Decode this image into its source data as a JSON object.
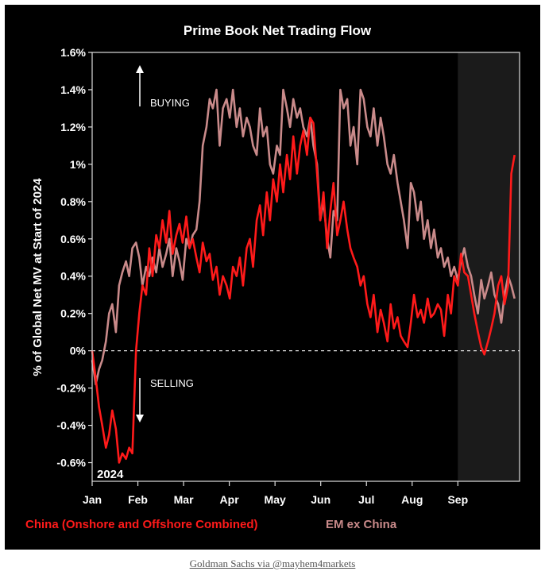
{
  "chart_data": {
    "type": "line",
    "title": "Prime Book Net Trading Flow",
    "ylabel": "% of Global Net MV at Start of 2024",
    "xlabel": "",
    "year_label": "2024",
    "ylim": [
      -0.7,
      1.6
    ],
    "yticks": [
      -0.6,
      -0.4,
      -0.2,
      0,
      0.2,
      0.4,
      0.6,
      0.8,
      1.0,
      1.2,
      1.4,
      1.6
    ],
    "ytick_labels": [
      "-0.6%",
      "-0.4%",
      "-0.2%",
      "0%",
      "0.2%",
      "0.4%",
      "0.6%",
      "0.8%",
      "1%",
      "1.2%",
      "1.4%",
      "1.6%"
    ],
    "x_range_months": [
      0,
      9.35
    ],
    "months": [
      "Jan",
      "Feb",
      "Mar",
      "Apr",
      "May",
      "Jun",
      "Jul",
      "Aug",
      "Sep"
    ],
    "shaded_from_month": 8.0,
    "zero_line": "dashed",
    "annotations": {
      "buying": "BUYING",
      "selling": "SELLING"
    },
    "series": [
      {
        "name": "China (Onshore and Offshore Combined)",
        "color": "#ff1a1a",
        "x": [
          0.0,
          0.08,
          0.15,
          0.22,
          0.3,
          0.37,
          0.44,
          0.52,
          0.59,
          0.66,
          0.74,
          0.81,
          0.88,
          0.96,
          1.03,
          1.1,
          1.18,
          1.25,
          1.32,
          1.4,
          1.47,
          1.54,
          1.62,
          1.69,
          1.76,
          1.84,
          1.91,
          1.98,
          2.06,
          2.13,
          2.2,
          2.28,
          2.35,
          2.42,
          2.5,
          2.57,
          2.64,
          2.72,
          2.79,
          2.86,
          2.94,
          3.01,
          3.08,
          3.16,
          3.23,
          3.3,
          3.38,
          3.45,
          3.52,
          3.6,
          3.67,
          3.74,
          3.82,
          3.89,
          3.96,
          4.04,
          4.11,
          4.18,
          4.26,
          4.33,
          4.4,
          4.48,
          4.55,
          4.62,
          4.7,
          4.77,
          4.84,
          4.92,
          4.99,
          5.06,
          5.14,
          5.21,
          5.28,
          5.36,
          5.43,
          5.5,
          5.58,
          5.65,
          5.72,
          5.8,
          5.87,
          5.94,
          6.02,
          6.09,
          6.16,
          6.24,
          6.31,
          6.38,
          6.46,
          6.53,
          6.6,
          6.68,
          6.75,
          6.82,
          6.9,
          6.97,
          7.04,
          7.12,
          7.19,
          7.26,
          7.34,
          7.41,
          7.48,
          7.56,
          7.63,
          7.7,
          7.78,
          7.85,
          7.92,
          8.0,
          8.07,
          8.14,
          8.22,
          8.29,
          8.36,
          8.44,
          8.51,
          8.58,
          8.66,
          8.73,
          8.8,
          8.88,
          8.95,
          9.02,
          9.1,
          9.17,
          9.24
        ],
        "y": [
          0.0,
          -0.15,
          -0.3,
          -0.4,
          -0.52,
          -0.45,
          -0.32,
          -0.42,
          -0.6,
          -0.55,
          -0.58,
          -0.52,
          -0.55,
          0.0,
          0.2,
          0.35,
          0.3,
          0.55,
          0.4,
          0.62,
          0.55,
          0.7,
          0.58,
          0.75,
          0.52,
          0.62,
          0.68,
          0.58,
          0.72,
          0.55,
          0.6,
          0.5,
          0.42,
          0.58,
          0.48,
          0.52,
          0.38,
          0.45,
          0.3,
          0.4,
          0.35,
          0.28,
          0.45,
          0.4,
          0.5,
          0.35,
          0.55,
          0.6,
          0.45,
          0.7,
          0.78,
          0.62,
          0.85,
          0.7,
          0.92,
          0.8,
          1.0,
          0.85,
          1.05,
          0.92,
          1.15,
          0.95,
          1.1,
          1.18,
          1.05,
          1.25,
          1.22,
          0.95,
          0.7,
          0.85,
          0.55,
          0.75,
          0.9,
          0.62,
          0.7,
          0.8,
          0.65,
          0.55,
          0.5,
          0.45,
          0.35,
          0.4,
          0.25,
          0.18,
          0.3,
          0.1,
          0.22,
          0.15,
          0.05,
          0.25,
          0.12,
          0.18,
          0.08,
          0.05,
          0.02,
          0.15,
          0.3,
          0.18,
          0.22,
          0.15,
          0.28,
          0.18,
          0.2,
          0.25,
          0.22,
          0.08,
          0.3,
          0.2,
          0.4,
          0.35,
          0.52,
          0.42,
          0.4,
          0.3,
          0.2,
          0.1,
          0.02,
          -0.02,
          0.05,
          0.12,
          0.2,
          0.35,
          0.4,
          0.25,
          0.35,
          0.95,
          1.05
        ]
      },
      {
        "name": "EM ex China",
        "color": "#c98a8a",
        "x": [
          0.0,
          0.08,
          0.15,
          0.22,
          0.3,
          0.37,
          0.44,
          0.52,
          0.59,
          0.66,
          0.74,
          0.81,
          0.88,
          0.96,
          1.03,
          1.1,
          1.18,
          1.25,
          1.32,
          1.4,
          1.47,
          1.54,
          1.62,
          1.69,
          1.76,
          1.84,
          1.91,
          1.98,
          2.06,
          2.13,
          2.2,
          2.28,
          2.35,
          2.42,
          2.5,
          2.57,
          2.64,
          2.72,
          2.79,
          2.86,
          2.94,
          3.01,
          3.08,
          3.16,
          3.23,
          3.3,
          3.38,
          3.45,
          3.52,
          3.6,
          3.67,
          3.74,
          3.82,
          3.89,
          3.96,
          4.04,
          4.11,
          4.18,
          4.26,
          4.33,
          4.4,
          4.48,
          4.55,
          4.62,
          4.7,
          4.77,
          4.84,
          4.92,
          4.99,
          5.06,
          5.14,
          5.21,
          5.28,
          5.36,
          5.43,
          5.5,
          5.58,
          5.65,
          5.72,
          5.8,
          5.87,
          5.94,
          6.02,
          6.09,
          6.16,
          6.24,
          6.31,
          6.38,
          6.46,
          6.53,
          6.6,
          6.68,
          6.75,
          6.82,
          6.9,
          6.97,
          7.04,
          7.12,
          7.19,
          7.26,
          7.34,
          7.41,
          7.48,
          7.56,
          7.63,
          7.7,
          7.78,
          7.85,
          7.92,
          8.0,
          8.07,
          8.14,
          8.22,
          8.29,
          8.36,
          8.44,
          8.51,
          8.58,
          8.66,
          8.73,
          8.8,
          8.88,
          8.95,
          9.02,
          9.1,
          9.17,
          9.24
        ],
        "y": [
          -0.05,
          -0.18,
          -0.1,
          -0.05,
          0.05,
          0.2,
          0.25,
          0.1,
          0.35,
          0.42,
          0.48,
          0.4,
          0.55,
          0.58,
          0.5,
          0.35,
          0.45,
          0.4,
          0.5,
          0.42,
          0.55,
          0.45,
          0.52,
          0.6,
          0.4,
          0.55,
          0.48,
          0.38,
          0.6,
          0.55,
          0.62,
          0.65,
          0.8,
          1.1,
          1.2,
          1.35,
          1.3,
          1.4,
          1.1,
          1.3,
          1.35,
          1.25,
          1.4,
          1.2,
          1.3,
          1.15,
          1.25,
          1.2,
          1.1,
          1.05,
          1.3,
          1.15,
          1.2,
          1.0,
          0.95,
          1.1,
          1.05,
          1.4,
          1.3,
          1.2,
          1.35,
          1.25,
          1.3,
          1.2,
          1.15,
          1.25,
          1.1,
          1.0,
          0.7,
          0.8,
          0.6,
          0.5,
          0.75,
          0.7,
          1.4,
          1.3,
          1.35,
          1.1,
          1.2,
          1.0,
          1.4,
          1.35,
          1.2,
          1.15,
          1.3,
          1.1,
          1.25,
          1.15,
          1.0,
          0.95,
          1.05,
          0.9,
          0.8,
          0.7,
          0.55,
          0.9,
          0.85,
          0.7,
          0.8,
          0.6,
          0.7,
          0.55,
          0.65,
          0.5,
          0.55,
          0.45,
          0.5,
          0.4,
          0.45,
          0.38,
          0.48,
          0.55,
          0.45,
          0.4,
          0.3,
          0.2,
          0.38,
          0.28,
          0.35,
          0.42,
          0.3,
          0.25,
          0.15,
          0.3,
          0.4,
          0.35,
          0.28
        ]
      }
    ]
  },
  "source_caption": "Goldman Sachs via @mayhem4markets"
}
